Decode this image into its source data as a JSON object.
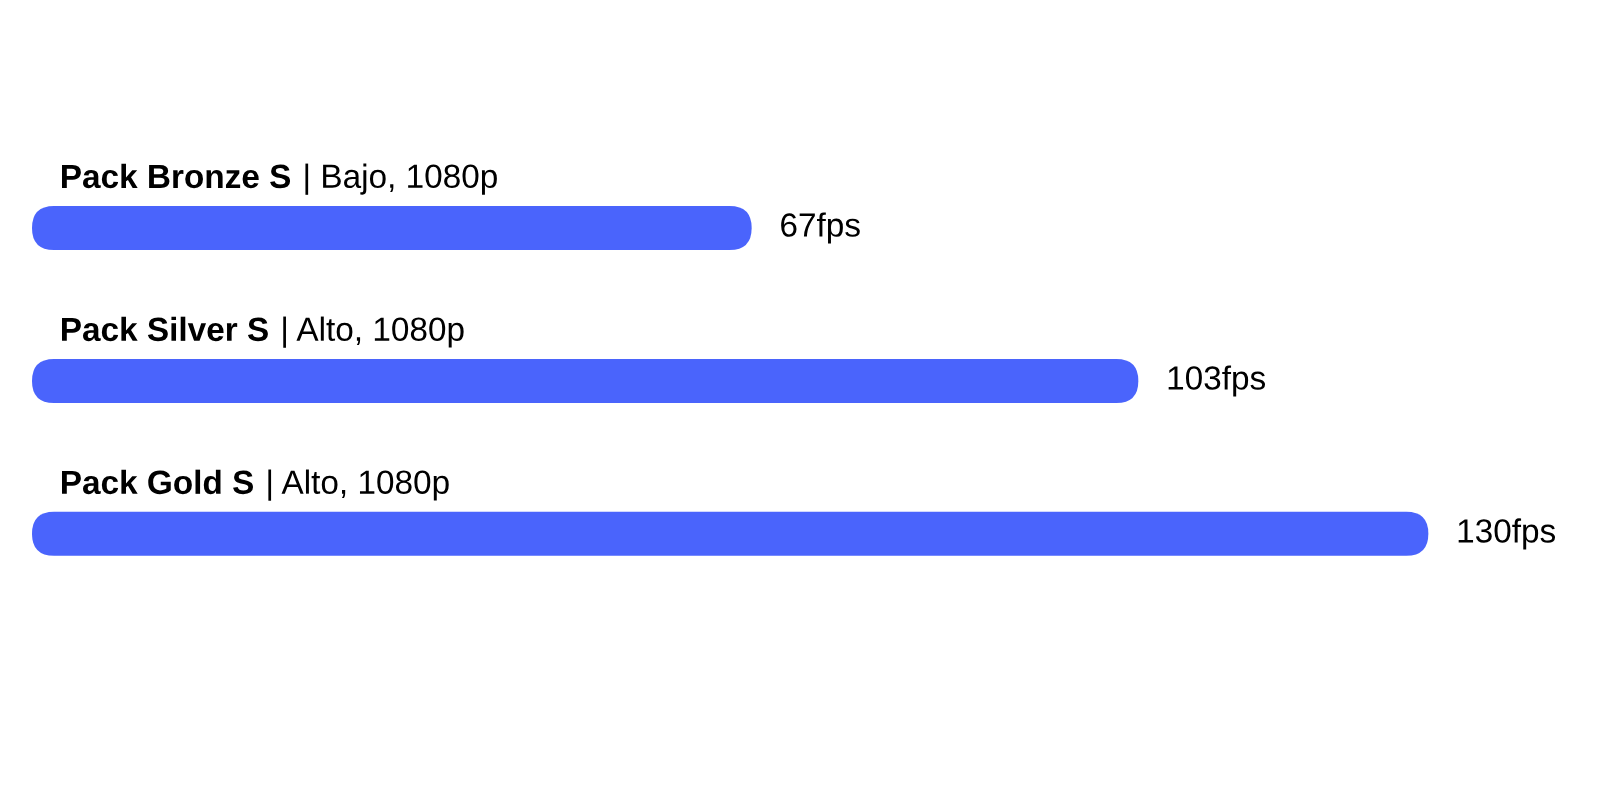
{
  "chart_data": {
    "type": "bar",
    "orientation": "horizontal",
    "categories": [
      "Pack Bronze S | Bajo, 1080p",
      "Pack Silver S | Alto, 1080p",
      "Pack Gold S | Alto, 1080p"
    ],
    "values": [
      67,
      103,
      130
    ],
    "color": "#4a64fc",
    "value_labels": [
      "67fps",
      "103fps",
      "130fps"
    ]
  }
}
